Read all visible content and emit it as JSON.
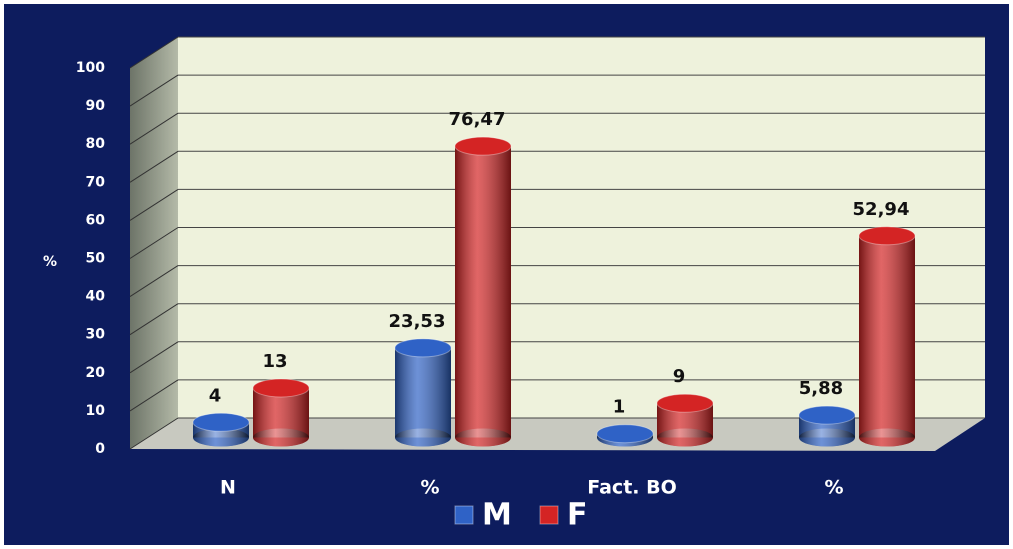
{
  "chart_data": {
    "type": "bar3d",
    "ylabel": "%",
    "categories": [
      "N",
      "%",
      "Fact. BO",
      "%"
    ],
    "series": [
      {
        "name": "M",
        "color": "#2f62c6",
        "values": [
          4,
          23.53,
          1,
          5.88
        ],
        "value_labels": [
          "4",
          "23,53",
          "1",
          "5,88"
        ]
      },
      {
        "name": "F",
        "color": "#d42424",
        "values": [
          13,
          76.47,
          9,
          52.94
        ],
        "value_labels": [
          "13",
          "76,47",
          "9",
          "52,94"
        ]
      }
    ],
    "ylim": [
      0,
      100
    ],
    "yticks": [
      0,
      10,
      20,
      30,
      40,
      50,
      60,
      70,
      80,
      90,
      100
    ],
    "grid": true,
    "legend": "bottom"
  }
}
